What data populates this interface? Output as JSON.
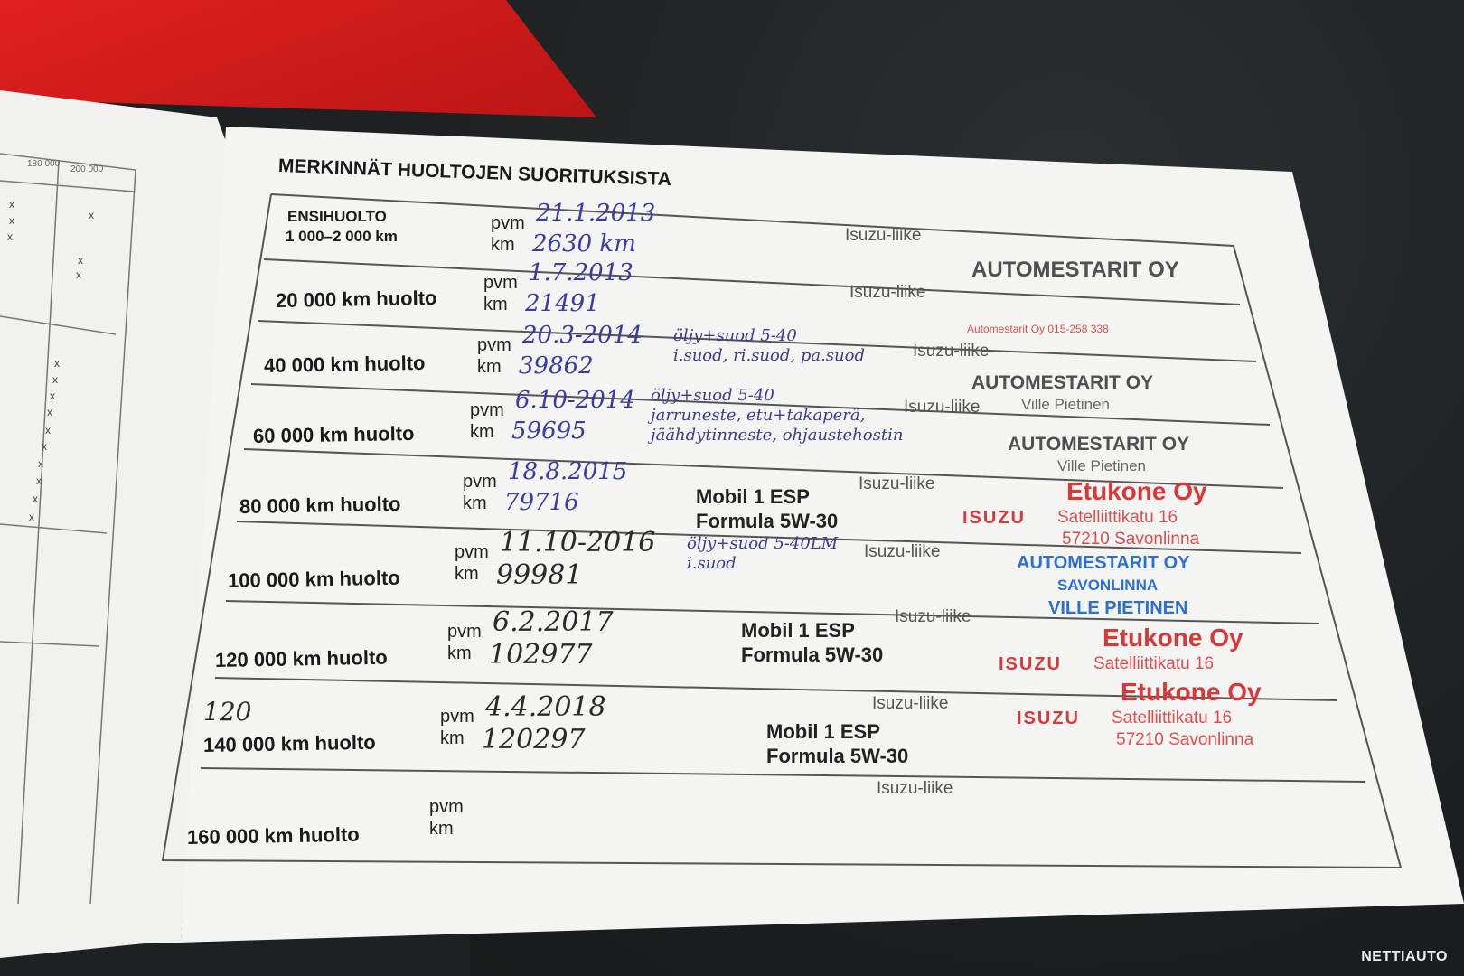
{
  "title": "MERKINNÄT HUOLTOJEN SUORITUKSISTA",
  "left_page": {
    "headers": [
      "180 000",
      "200 000"
    ],
    "mark": "x"
  },
  "field_labels": {
    "date": "pvm",
    "km": "km",
    "dealer": "Isuzu-liike"
  },
  "rows": [
    {
      "label": "ENSIHUOLTO",
      "label2": "1 000–2 000 km",
      "pvm": "21.1.2013",
      "km": "2630 km",
      "notes": [],
      "stamp": "AUTOMESTARIT OY"
    },
    {
      "label": "20 000 km huolto",
      "pvm": "1.7.2013",
      "km": "21491",
      "notes": [],
      "stamp": "Automestarit Oy 015-258 338"
    },
    {
      "label": "40 000 km huolto",
      "pvm": "20.3-2014",
      "km": "39862",
      "notes": [
        "öljy+suod 5-40",
        "i.suod, ri.suod, pa.suod"
      ],
      "stamp": "AUTOMESTARIT OY",
      "stamp2": "Ville Pietinen"
    },
    {
      "label": "60 000 km huolto",
      "pvm": "6.10-2014",
      "km": "59695",
      "notes": [
        "öljy+suod 5-40",
        "jarruneste, etu+takaperä,",
        "jäähdytinneste, ohjaustehostin"
      ],
      "stamp": "AUTOMESTARIT OY",
      "stamp2": "Ville Pietinen"
    },
    {
      "label": "80 000 km huolto",
      "pvm": "18.8.2015",
      "km": "79716",
      "oil": [
        "Mobil 1 ESP",
        "Formula 5W-30"
      ],
      "stamp": "Etukone Oy",
      "stamp_brand": "ISUZU",
      "stamp_addr": [
        "Satelliittikatu 16",
        "57210 Savonlinna"
      ]
    },
    {
      "label": "100 000 km huolto",
      "pvm": "11.10-2016",
      "km": "99981",
      "notes": [
        "öljy+suod 5-40LM",
        "i.suod"
      ],
      "stamp": "AUTOMESTARIT OY",
      "stamp2": "SAVONLINNA",
      "stamp3": "VILLE PIETINEN"
    },
    {
      "label": "120 000 km huolto",
      "pvm": "6.2.2017",
      "km": "102977",
      "oil": [
        "Mobil 1 ESP",
        "Formula 5W-30"
      ],
      "stamp": "Etukone Oy",
      "stamp_brand": "ISUZU",
      "stamp_addr": [
        "Satelliittikatu 16"
      ]
    },
    {
      "label": "140 000 km huolto",
      "correction": "120",
      "pvm": "4.4.2018",
      "km": "120297",
      "oil": [
        "Mobil 1 ESP",
        "Formula 5W-30"
      ],
      "stamp": "Etukone Oy",
      "stamp_brand": "ISUZU",
      "stamp_addr": [
        "Satelliittikatu 16",
        "57210 Savonlinna"
      ]
    },
    {
      "label": "160 000 km huolto",
      "pvm": "",
      "km": ""
    }
  ],
  "watermark": "NETTIAUTO"
}
